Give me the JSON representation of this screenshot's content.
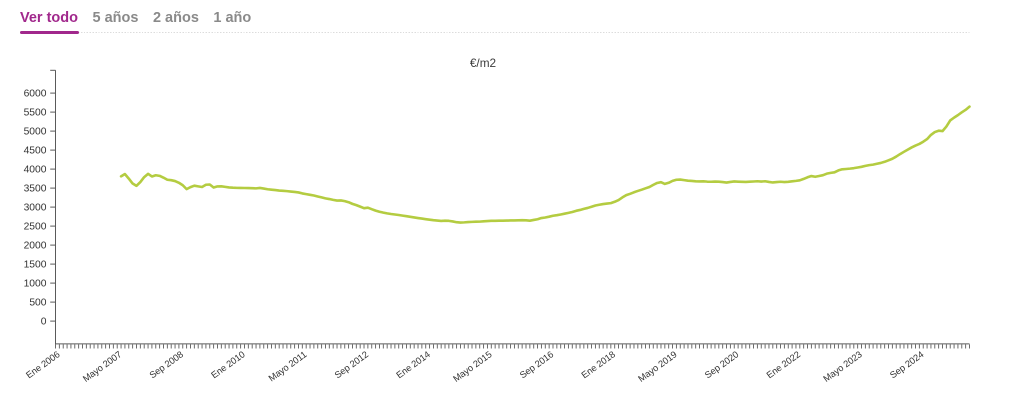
{
  "tabs": {
    "items": [
      {
        "label": "Ver todo",
        "active": true
      },
      {
        "label": "5 años",
        "active": false
      },
      {
        "label": "2 años",
        "active": false
      },
      {
        "label": "1 año",
        "active": false
      }
    ]
  },
  "chart_data": {
    "type": "line",
    "title": "€/m2",
    "x_axis": {
      "start_label": "Ene 2006",
      "months_total": 238,
      "tick_labels": [
        "Ene 2006",
        "Mayo 2007",
        "Sep 2008",
        "Ene 2010",
        "Mayo 2011",
        "Sep 2012",
        "Ene 2014",
        "Mayo 2015",
        "Sep 2016",
        "Ene 2018",
        "Mayo 2019",
        "Sep 2020",
        "Ene 2022",
        "Mayo 2023",
        "Sep 2024"
      ],
      "label_every": 16
    },
    "y_axis": {
      "ticks": [
        0,
        500,
        1000,
        1500,
        2000,
        2500,
        3000,
        3500,
        4000,
        4500,
        5000,
        5500,
        6000
      ],
      "range": [
        -600,
        6600
      ]
    },
    "series": [
      {
        "name": "€/m2",
        "start_month_index": 17,
        "values": [
          3810,
          3870,
          3750,
          3620,
          3560,
          3660,
          3790,
          3875,
          3806,
          3838,
          3822,
          3775,
          3720,
          3708,
          3685,
          3640,
          3575,
          3473,
          3525,
          3563,
          3545,
          3529,
          3588,
          3595,
          3515,
          3545,
          3548,
          3532,
          3518,
          3510,
          3506,
          3505,
          3503,
          3502,
          3498,
          3493,
          3505,
          3488,
          3470,
          3458,
          3448,
          3436,
          3428,
          3420,
          3410,
          3400,
          3386,
          3360,
          3342,
          3324,
          3305,
          3280,
          3255,
          3230,
          3212,
          3190,
          3172,
          3175,
          3158,
          3128,
          3085,
          3052,
          3012,
          2972,
          2985,
          2945,
          2908,
          2878,
          2855,
          2835,
          2818,
          2805,
          2792,
          2775,
          2760,
          2745,
          2728,
          2712,
          2698,
          2682,
          2668,
          2655,
          2645,
          2636,
          2642,
          2638,
          2622,
          2602,
          2592,
          2598,
          2606,
          2611,
          2615,
          2618,
          2625,
          2632,
          2638,
          2640,
          2642,
          2642,
          2645,
          2648,
          2650,
          2653,
          2655,
          2652,
          2642,
          2662,
          2680,
          2712,
          2726,
          2748,
          2772,
          2788,
          2806,
          2826,
          2848,
          2872,
          2902,
          2925,
          2952,
          2978,
          3010,
          3042,
          3062,
          3080,
          3092,
          3105,
          3140,
          3185,
          3255,
          3315,
          3350,
          3390,
          3425,
          3458,
          3495,
          3530,
          3585,
          3635,
          3655,
          3610,
          3640,
          3690,
          3720,
          3725,
          3710,
          3695,
          3688,
          3678,
          3675,
          3678,
          3670,
          3667,
          3673,
          3668,
          3658,
          3645,
          3662,
          3676,
          3670,
          3665,
          3662,
          3668,
          3674,
          3680,
          3672,
          3680,
          3662,
          3648,
          3658,
          3667,
          3660,
          3665,
          3678,
          3690,
          3705,
          3742,
          3785,
          3817,
          3798,
          3818,
          3840,
          3880,
          3900,
          3915,
          3965,
          3995,
          4003,
          4012,
          4025,
          4042,
          4060,
          4085,
          4105,
          4118,
          4140,
          4162,
          4192,
          4232,
          4272,
          4330,
          4395,
          4455,
          4512,
          4570,
          4620,
          4662,
          4720,
          4790,
          4900,
          4975,
          5010,
          5000,
          5120,
          5280,
          5355,
          5420,
          5495,
          5560,
          5645
        ]
      }
    ],
    "legend": "off",
    "grid": "off",
    "colors": {
      "line": "#b4cc41",
      "axis": "#5a5a5a",
      "tick_text": "#333333"
    }
  },
  "colors": {
    "accent": "#a1288c",
    "inactive_tab": "#8a8a8a",
    "divider": "#dcdcdc",
    "background": "#ffffff"
  }
}
